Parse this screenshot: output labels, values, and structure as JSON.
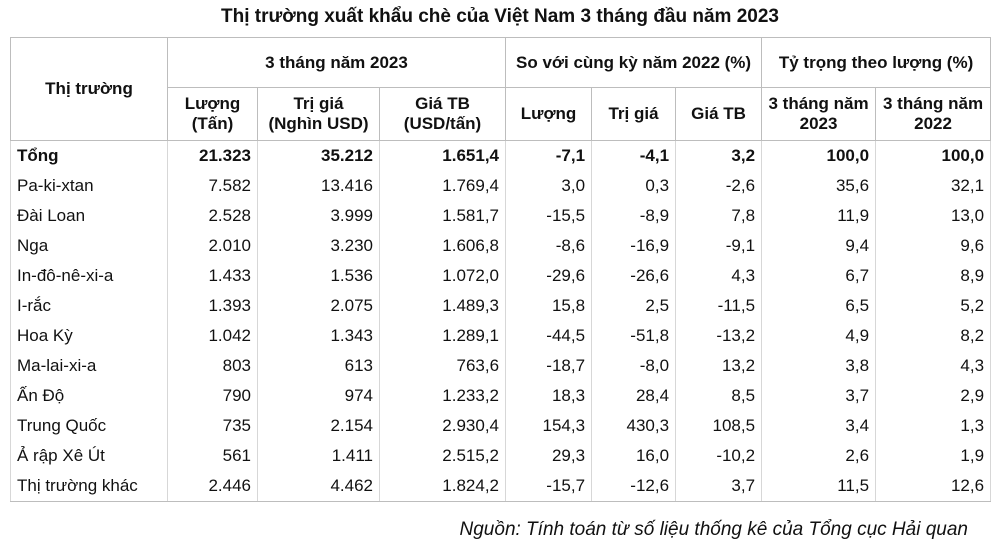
{
  "title": "Thị trường xuất khẩu chè của Việt Nam 3 tháng đầu năm 2023",
  "headers": {
    "market": "Thị trường",
    "group1": "3 tháng năm 2023",
    "group2": "So với cùng kỳ năm 2022 (%)",
    "group3": "Tỷ trọng theo lượng (%)",
    "sub": [
      "Lượng\n(Tấn)",
      "Trị giá\n(Nghìn USD)",
      "Giá TB\n(USD/tấn)",
      "Lượng",
      "Trị giá",
      "Giá TB",
      "3 tháng năm\n2023",
      "3 tháng năm\n2022"
    ]
  },
  "total": [
    "Tổng",
    "21.323",
    "35.212",
    "1.651,4",
    "-7,1",
    "-4,1",
    "3,2",
    "100,0",
    "100,0"
  ],
  "rows": [
    [
      "Pa-ki-xtan",
      "7.582",
      "13.416",
      "1.769,4",
      "3,0",
      "0,3",
      "-2,6",
      "35,6",
      "32,1"
    ],
    [
      "Đài Loan",
      "2.528",
      "3.999",
      "1.581,7",
      "-15,5",
      "-8,9",
      "7,8",
      "11,9",
      "13,0"
    ],
    [
      "Nga",
      "2.010",
      "3.230",
      "1.606,8",
      "-8,6",
      "-16,9",
      "-9,1",
      "9,4",
      "9,6"
    ],
    [
      "In-đô-nê-xi-a",
      "1.433",
      "1.536",
      "1.072,0",
      "-29,6",
      "-26,6",
      "4,3",
      "6,7",
      "8,9"
    ],
    [
      "I-rắc",
      "1.393",
      "2.075",
      "1.489,3",
      "15,8",
      "2,5",
      "-11,5",
      "6,5",
      "5,2"
    ],
    [
      "Hoa Kỳ",
      "1.042",
      "1.343",
      "1.289,1",
      "-44,5",
      "-51,8",
      "-13,2",
      "4,9",
      "8,2"
    ],
    [
      "Ma-lai-xi-a",
      "803",
      "613",
      "763,6",
      "-18,7",
      "-8,0",
      "13,2",
      "3,8",
      "4,3"
    ],
    [
      "Ấn Độ",
      "790",
      "974",
      "1.233,2",
      "18,3",
      "28,4",
      "8,5",
      "3,7",
      "2,9"
    ],
    [
      "Trung Quốc",
      "735",
      "2.154",
      "2.930,4",
      "154,3",
      "430,3",
      "108,5",
      "3,4",
      "1,3"
    ],
    [
      "Ả rập Xê Út",
      "561",
      "1.411",
      "2.515,2",
      "29,3",
      "16,0",
      "-10,2",
      "2,6",
      "1,9"
    ],
    [
      "Thị trường khác",
      "2.446",
      "4.462",
      "1.824,2",
      "-15,7",
      "-12,6",
      "3,7",
      "11,5",
      "12,6"
    ]
  ],
  "source": "Nguồn: Tính toán từ số liệu thống kê của Tổng cục Hải quan"
}
